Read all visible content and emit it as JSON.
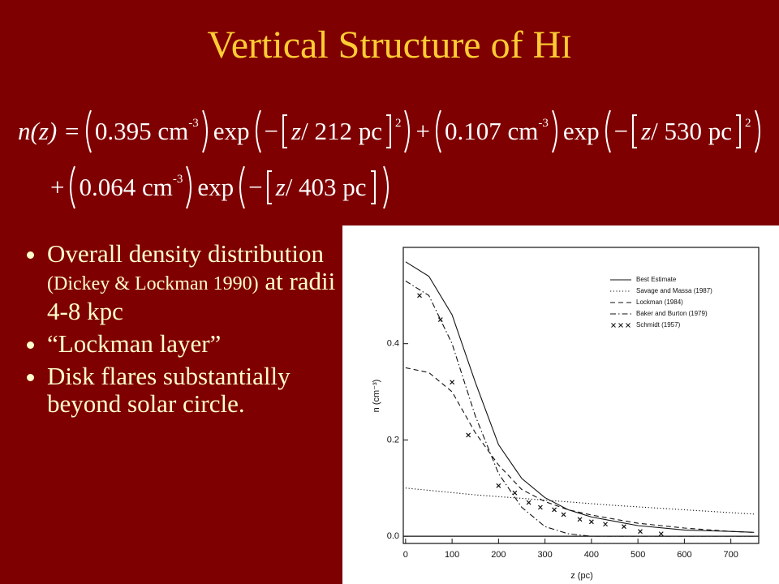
{
  "title": {
    "main": "Vertical Structure of H",
    "ion": "I"
  },
  "equation": {
    "lhs": "n(z) =",
    "plus": "+",
    "neg": "−",
    "terms": [
      {
        "coef": "0.395 cm",
        "unit_exp": "-3",
        "func": "exp",
        "var": "z",
        "rest": "/ 212 pc",
        "power": "2"
      },
      {
        "coef": "0.107 cm",
        "unit_exp": "-3",
        "func": "exp",
        "var": "z",
        "rest": "/ 530 pc",
        "power": "2"
      },
      {
        "coef": "0.064 cm",
        "unit_exp": "-3",
        "func": "exp",
        "var": "z",
        "rest": "/ 403 pc"
      }
    ]
  },
  "bullets": [
    {
      "text": "Overall density distribution",
      "citation": "(Dickey & Lockman 1990)",
      "tail": "at radii 4-8 kpc"
    },
    {
      "text": "“Lockman layer”"
    },
    {
      "text": "Disk flares substantially beyond solar circle."
    }
  ],
  "chart_data": {
    "type": "line",
    "xlabel": "z (pc)",
    "ylabel": "n (cm⁻³)",
    "xlim": [
      -5,
      760
    ],
    "ylim": [
      -0.015,
      0.6
    ],
    "xticks": [
      0,
      100,
      200,
      300,
      400,
      500,
      600,
      700
    ],
    "yticks": [
      {
        "value": 0,
        "label": "0.0"
      },
      0.2,
      0.4
    ],
    "legend": "upper right",
    "series": [
      {
        "name": "Best Estimate",
        "style": "solid",
        "color": "#111111",
        "x": [
          0,
          50,
          100,
          150,
          200,
          250,
          300,
          350,
          400,
          500,
          600,
          700,
          750
        ],
        "values": [
          0.57,
          0.54,
          0.46,
          0.32,
          0.19,
          0.12,
          0.08,
          0.055,
          0.04,
          0.022,
          0.013,
          0.01,
          0.008
        ]
      },
      {
        "name": "Savage and Massa (1987)",
        "style": "dotted",
        "color": "#111111",
        "x": [
          0,
          150,
          300,
          450,
          600,
          750
        ],
        "values": [
          0.1,
          0.086,
          0.075,
          0.064,
          0.055,
          0.046
        ]
      },
      {
        "name": "Lockman (1984)",
        "style": "dashed",
        "color": "#111111",
        "x": [
          0,
          50,
          100,
          150,
          200,
          250,
          300,
          350,
          400,
          500,
          600,
          700,
          750
        ],
        "values": [
          0.35,
          0.34,
          0.3,
          0.215,
          0.148,
          0.097,
          0.072,
          0.055,
          0.044,
          0.027,
          0.017,
          0.01,
          0.008
        ]
      },
      {
        "name": "Baker and Burton (1979)",
        "style": "dashdot",
        "color": "#111111",
        "x": [
          0,
          50,
          100,
          150,
          200,
          250,
          300,
          350,
          400,
          750
        ],
        "values": [
          0.53,
          0.5,
          0.4,
          0.25,
          0.13,
          0.06,
          0.02,
          0.005,
          0,
          0
        ]
      },
      {
        "name": "Schmidt (1957)",
        "style": "markers",
        "color": "#111111",
        "x": [
          30,
          75,
          100,
          135,
          200,
          235,
          265,
          290,
          320,
          340,
          375,
          400,
          430,
          470,
          505,
          550
        ],
        "values": [
          0.5,
          0.45,
          0.32,
          0.21,
          0.105,
          0.09,
          0.07,
          0.06,
          0.055,
          0.045,
          0.035,
          0.03,
          0.025,
          0.02,
          0.01,
          0.005
        ]
      }
    ]
  }
}
